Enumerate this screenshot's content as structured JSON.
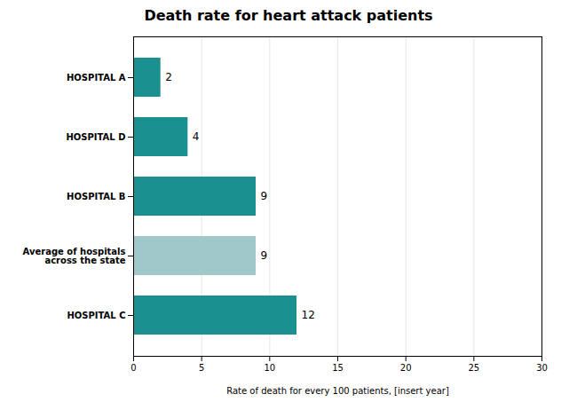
{
  "chart_data": {
    "type": "bar",
    "orientation": "horizontal",
    "title": "Death rate for heart attack patients",
    "xlabel": "Rate of death for every 100 patients, [insert year]",
    "categories": [
      "HOSPITAL A",
      "HOSPITAL D",
      "HOSPITAL B",
      "Average of hospitals\nacross the state",
      "HOSPITAL C"
    ],
    "values": [
      2,
      4,
      9,
      9,
      12
    ],
    "colors": [
      "#1a9090",
      "#1a9090",
      "#1a9090",
      "#a0c8c8",
      "#1a9090"
    ],
    "xlim": [
      0,
      30
    ],
    "xticks": [
      0,
      5,
      10,
      15,
      20,
      25,
      30
    ],
    "grid": true,
    "data_labels": true
  }
}
